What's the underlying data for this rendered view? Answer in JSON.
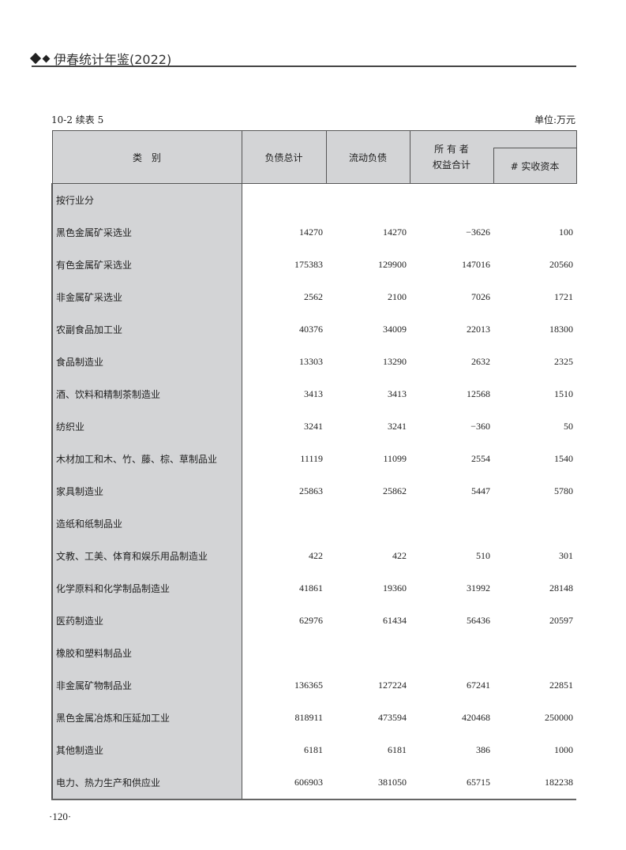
{
  "header": {
    "title": "伊春统计年鉴(2022)",
    "icon": "double-diamond-icon"
  },
  "caption": {
    "table_id": "10-2 续表 5",
    "unit": "单位:万元"
  },
  "table": {
    "headers": {
      "category": "类　别",
      "total_liabilities": "负债总计",
      "current_liabilities": "流动负债",
      "owners_equity": "所 有 者\n权益合计",
      "paid_in_capital": "# 实收资本"
    },
    "rows": [
      {
        "category": "按行业分",
        "values": [
          "",
          "",
          "",
          ""
        ]
      },
      {
        "category": "黑色金属矿采选业",
        "values": [
          "14270",
          "14270",
          "−3626",
          "100"
        ]
      },
      {
        "category": "有色金属矿采选业",
        "values": [
          "175383",
          "129900",
          "147016",
          "20560"
        ]
      },
      {
        "category": "非金属矿采选业",
        "values": [
          "2562",
          "2100",
          "7026",
          "1721"
        ]
      },
      {
        "category": "农副食品加工业",
        "values": [
          "40376",
          "34009",
          "22013",
          "18300"
        ]
      },
      {
        "category": "食品制造业",
        "values": [
          "13303",
          "13290",
          "2632",
          "2325"
        ]
      },
      {
        "category": "酒、饮料和精制茶制造业",
        "values": [
          "3413",
          "3413",
          "12568",
          "1510"
        ]
      },
      {
        "category": "纺织业",
        "values": [
          "3241",
          "3241",
          "−360",
          "50"
        ]
      },
      {
        "category": "木材加工和木、竹、藤、棕、草制品业",
        "values": [
          "11119",
          "11099",
          "2554",
          "1540"
        ]
      },
      {
        "category": "家具制造业",
        "values": [
          "25863",
          "25862",
          "5447",
          "5780"
        ]
      },
      {
        "category": "造纸和纸制品业",
        "values": [
          "",
          "",
          "",
          ""
        ]
      },
      {
        "category": "文教、工美、体育和娱乐用品制造业",
        "values": [
          "422",
          "422",
          "510",
          "301"
        ]
      },
      {
        "category": "化学原料和化学制品制造业",
        "values": [
          "41861",
          "19360",
          "31992",
          "28148"
        ]
      },
      {
        "category": "医药制造业",
        "values": [
          "62976",
          "61434",
          "56436",
          "20597"
        ]
      },
      {
        "category": "橡胶和塑料制品业",
        "values": [
          "",
          "",
          "",
          ""
        ]
      },
      {
        "category": "非金属矿物制品业",
        "values": [
          "136365",
          "127224",
          "67241",
          "22851"
        ]
      },
      {
        "category": "黑色金属冶炼和压延加工业",
        "values": [
          "818911",
          "473594",
          "420468",
          "250000"
        ]
      },
      {
        "category": "其他制造业",
        "values": [
          "6181",
          "6181",
          "386",
          "1000"
        ]
      },
      {
        "category": "电力、热力生产和供应业",
        "values": [
          "606903",
          "381050",
          "65715",
          "182238"
        ]
      }
    ]
  },
  "page_number": "·120·"
}
